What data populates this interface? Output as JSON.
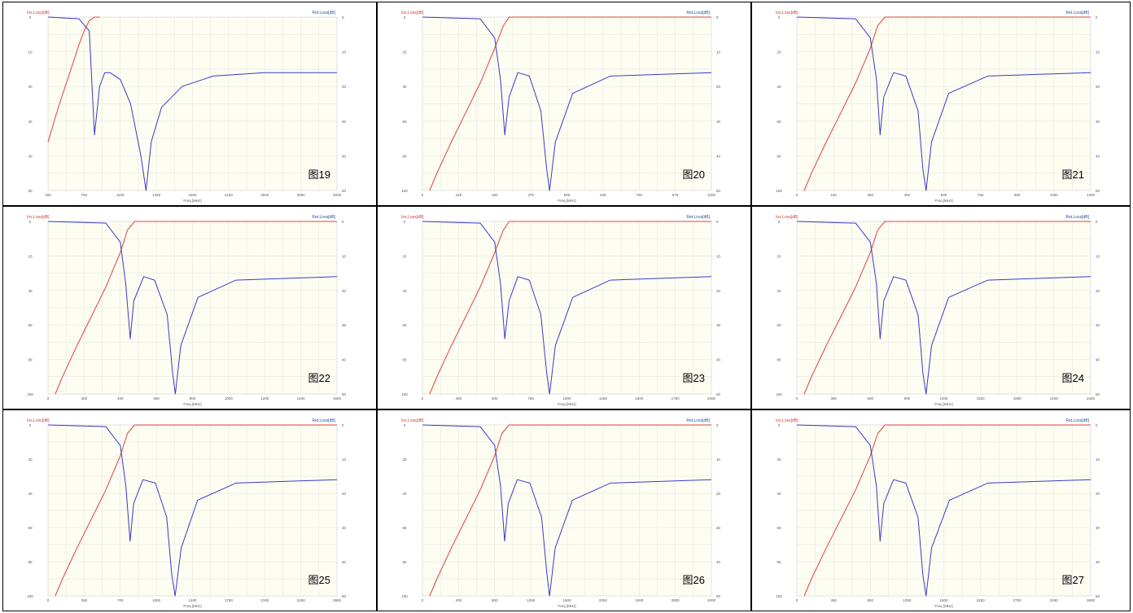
{
  "colors": {
    "plot_bg": "#fdfdf2",
    "grid": "#e2e2e2",
    "ins_loss": "#e0403a",
    "ret_loss": "#3a3ac8",
    "left_label": "#d04030",
    "right_label": "#2050a0",
    "axis_text": "#555555"
  },
  "charts": [
    {
      "left_axis_label": "Ins.Loss[dB]",
      "right_axis_label": "Ret.Loss[dB]",
      "xlabel": "Freq [MHz]",
      "left_ticks": [
        "0",
        "10",
        "20",
        "30",
        "40",
        "50"
      ],
      "right_ticks": [
        "0",
        "10",
        "20",
        "30",
        "40",
        "50"
      ],
      "x_ticks": [
        "400",
        "750",
        "1100",
        "1450",
        "1800",
        "2150",
        "2500",
        "2850",
        "3200"
      ],
      "figure_label": "图19"
    },
    {
      "left_axis_label": "Ins.Loss[dB]",
      "right_axis_label": "Ret.Loss[dB]",
      "xlabel": "Freq [MHz]",
      "left_ticks": [
        "0",
        "20",
        "40",
        "60",
        "80",
        "100"
      ],
      "right_ticks": [
        "0",
        "10",
        "20",
        "30",
        "40",
        "50"
      ],
      "x_ticks": [
        "0",
        "125",
        "250",
        "375",
        "500",
        "625",
        "750",
        "875",
        "1000"
      ],
      "figure_label": "图20"
    },
    {
      "left_axis_label": "Ins.Loss[dB]",
      "right_axis_label": "Ret.Loss[dB]",
      "xlabel": "Freq [MHz]",
      "left_ticks": [
        "0",
        "20",
        "40",
        "60",
        "80",
        "100"
      ],
      "right_ticks": [
        "0",
        "10",
        "20",
        "30",
        "40",
        "50"
      ],
      "x_ticks": [
        "0",
        "150",
        "300",
        "450",
        "600",
        "750",
        "900",
        "1050",
        "1200"
      ],
      "figure_label": "图21"
    },
    {
      "left_axis_label": "Ins.Loss[dB]",
      "right_axis_label": "Ret.Loss[dB]",
      "xlabel": "Freq [MHz]",
      "left_ticks": [
        "0",
        "20",
        "40",
        "60",
        "80",
        "100"
      ],
      "right_ticks": [
        "0",
        "10",
        "20",
        "30",
        "40",
        "50"
      ],
      "x_ticks": [
        "0",
        "200",
        "400",
        "600",
        "800",
        "1000",
        "1200",
        "1400",
        "1600"
      ],
      "figure_label": "图22"
    },
    {
      "left_axis_label": "Ins.Loss[dB]",
      "right_axis_label": "Ret.Loss[dB]",
      "xlabel": "Freq [MHz]",
      "left_ticks": [
        "0",
        "20",
        "40",
        "60",
        "80",
        "100"
      ],
      "right_ticks": [
        "0",
        "10",
        "20",
        "30",
        "40",
        "50"
      ],
      "x_ticks": [
        "0",
        "250",
        "500",
        "750",
        "1000",
        "1250",
        "1500",
        "1750",
        "2000"
      ],
      "figure_label": "图23"
    },
    {
      "left_axis_label": "Ins.Loss[dB]",
      "right_axis_label": "Ret.Loss[dB]",
      "xlabel": "Freq [MHz]",
      "left_ticks": [
        "0",
        "20",
        "40",
        "60",
        "80",
        "100"
      ],
      "right_ticks": [
        "0",
        "10",
        "20",
        "30",
        "40",
        "50"
      ],
      "x_ticks": [
        "0",
        "300",
        "600",
        "900",
        "1200",
        "1500",
        "1800",
        "2100",
        "2400"
      ],
      "figure_label": "图24"
    },
    {
      "left_axis_label": "Ins.Loss[dB]",
      "right_axis_label": "Ret.Loss[dB]",
      "xlabel": "Freq [MHz]",
      "left_ticks": [
        "0",
        "20",
        "40",
        "60",
        "80",
        "100"
      ],
      "right_ticks": [
        "0",
        "10",
        "20",
        "30",
        "40",
        "50"
      ],
      "x_ticks": [
        "0",
        "350",
        "700",
        "1050",
        "1400",
        "1750",
        "2100",
        "2450",
        "2800"
      ],
      "figure_label": "图25"
    },
    {
      "left_axis_label": "Ins.Loss[dB]",
      "right_axis_label": "Ret.Loss[dB]",
      "xlabel": "Freq [MHz]",
      "left_ticks": [
        "0",
        "20",
        "40",
        "60",
        "80",
        "100"
      ],
      "right_ticks": [
        "0",
        "10",
        "20",
        "30",
        "40",
        "50"
      ],
      "x_ticks": [
        "0",
        "400",
        "800",
        "1200",
        "1600",
        "2000",
        "2400",
        "2800",
        "3200"
      ],
      "figure_label": "图26"
    },
    {
      "left_axis_label": "Ins.Loss[dB]",
      "right_axis_label": "Ret.Loss[dB]",
      "xlabel": "Freq [MHz]",
      "left_ticks": [
        "0",
        "20",
        "40",
        "60",
        "80",
        "100"
      ],
      "right_ticks": [
        "0",
        "10",
        "20",
        "30",
        "40",
        "50"
      ],
      "x_ticks": [
        "0",
        "450",
        "900",
        "1350",
        "1800",
        "2250",
        "2700",
        "3150",
        "3600"
      ],
      "figure_label": "图27"
    }
  ],
  "chart_data": [
    {
      "type": "line",
      "x_range": [
        400,
        3200
      ],
      "y_left_range": [
        0,
        50
      ],
      "y_right_range": [
        0,
        50
      ],
      "series": [
        {
          "x": [
            400,
            500,
            600,
            700,
            750,
            800,
            850,
            900
          ],
          "values": [
            36,
            26,
            17,
            8,
            4,
            1,
            0,
            0
          ]
        },
        {
          "x": [
            400,
            700,
            800,
            850,
            900,
            950,
            1000,
            1100,
            1200,
            1300,
            1350,
            1400,
            1500,
            1700,
            2000,
            2500,
            3200
          ],
          "values": [
            0,
            0.5,
            4,
            34,
            20,
            16,
            16,
            18,
            25,
            40,
            50,
            36,
            26,
            20,
            17,
            16,
            16
          ]
        }
      ]
    },
    {
      "type": "line",
      "x_range": [
        0,
        1000
      ],
      "y_left_range": [
        0,
        100
      ],
      "y_right_range": [
        0,
        50
      ],
      "series": [
        {
          "x": [
            25,
            50,
            100,
            150,
            200,
            250,
            280,
            300,
            1000
          ],
          "values": [
            100,
            90,
            72,
            55,
            38,
            18,
            5,
            0,
            0
          ]
        },
        {
          "x": [
            0,
            200,
            250,
            270,
            285,
            300,
            330,
            370,
            410,
            430,
            440,
            460,
            520,
            650,
            1000
          ],
          "values": [
            0,
            0.5,
            6,
            18,
            34,
            23,
            16,
            17,
            27,
            44,
            50,
            36,
            22,
            17,
            16
          ]
        }
      ]
    },
    {
      "type": "line",
      "x_range": [
        0,
        1200
      ],
      "y_left_range": [
        0,
        100
      ],
      "y_right_range": [
        0,
        50
      ],
      "series": [
        {
          "x": [
            30,
            60,
            120,
            180,
            240,
            300,
            330,
            360,
            1200
          ],
          "values": [
            100,
            90,
            72,
            55,
            38,
            18,
            5,
            0,
            0
          ]
        },
        {
          "x": [
            0,
            240,
            300,
            325,
            340,
            355,
            395,
            445,
            495,
            515,
            528,
            550,
            620,
            780,
            1200
          ],
          "values": [
            0,
            0.5,
            6,
            18,
            34,
            23,
            16,
            17,
            27,
            44,
            50,
            36,
            22,
            17,
            16
          ]
        }
      ]
    },
    {
      "type": "line",
      "x_range": [
        0,
        1600
      ],
      "y_left_range": [
        0,
        100
      ],
      "y_right_range": [
        0,
        50
      ],
      "series": [
        {
          "x": [
            40,
            80,
            160,
            240,
            320,
            400,
            440,
            480,
            1600
          ],
          "values": [
            100,
            90,
            72,
            55,
            38,
            18,
            5,
            0,
            0
          ]
        },
        {
          "x": [
            0,
            320,
            400,
            430,
            455,
            475,
            530,
            590,
            660,
            690,
            705,
            735,
            830,
            1040,
            1600
          ],
          "values": [
            0,
            0.5,
            6,
            18,
            34,
            23,
            16,
            17,
            27,
            44,
            50,
            36,
            22,
            17,
            16
          ]
        }
      ]
    },
    {
      "type": "line",
      "x_range": [
        0,
        2000
      ],
      "y_left_range": [
        0,
        100
      ],
      "y_right_range": [
        0,
        50
      ],
      "series": [
        {
          "x": [
            50,
            100,
            200,
            300,
            400,
            500,
            560,
            600,
            2000
          ],
          "values": [
            100,
            90,
            72,
            55,
            38,
            18,
            5,
            0,
            0
          ]
        },
        {
          "x": [
            0,
            400,
            500,
            540,
            570,
            600,
            660,
            740,
            820,
            860,
            880,
            920,
            1040,
            1300,
            2000
          ],
          "values": [
            0,
            0.5,
            6,
            18,
            34,
            23,
            16,
            17,
            27,
            44,
            50,
            36,
            22,
            17,
            16
          ]
        }
      ]
    },
    {
      "type": "line",
      "x_range": [
        0,
        2400
      ],
      "y_left_range": [
        0,
        100
      ],
      "y_right_range": [
        0,
        50
      ],
      "series": [
        {
          "x": [
            60,
            120,
            240,
            360,
            480,
            600,
            660,
            720,
            2400
          ],
          "values": [
            100,
            90,
            72,
            55,
            38,
            18,
            5,
            0,
            0
          ]
        },
        {
          "x": [
            0,
            480,
            600,
            650,
            680,
            710,
            790,
            890,
            990,
            1030,
            1056,
            1100,
            1240,
            1560,
            2400
          ],
          "values": [
            0,
            0.5,
            6,
            18,
            34,
            23,
            16,
            17,
            27,
            44,
            50,
            36,
            22,
            17,
            16
          ]
        }
      ]
    },
    {
      "type": "line",
      "x_range": [
        0,
        2800
      ],
      "y_left_range": [
        0,
        100
      ],
      "y_right_range": [
        0,
        50
      ],
      "series": [
        {
          "x": [
            70,
            140,
            280,
            420,
            560,
            700,
            770,
            840,
            2800
          ],
          "values": [
            100,
            90,
            72,
            55,
            38,
            18,
            5,
            0,
            0
          ]
        },
        {
          "x": [
            0,
            560,
            700,
            755,
            795,
            830,
            920,
            1040,
            1150,
            1200,
            1232,
            1290,
            1450,
            1820,
            2800
          ],
          "values": [
            0,
            0.5,
            6,
            18,
            34,
            23,
            16,
            17,
            27,
            44,
            50,
            36,
            22,
            17,
            16
          ]
        }
      ]
    },
    {
      "type": "line",
      "x_range": [
        0,
        3200
      ],
      "y_left_range": [
        0,
        100
      ],
      "y_right_range": [
        0,
        50
      ],
      "series": [
        {
          "x": [
            80,
            160,
            320,
            480,
            640,
            800,
            880,
            960,
            3200
          ],
          "values": [
            100,
            90,
            72,
            55,
            38,
            18,
            5,
            0,
            0
          ]
        },
        {
          "x": [
            0,
            640,
            800,
            865,
            910,
            950,
            1050,
            1190,
            1320,
            1380,
            1408,
            1470,
            1660,
            2080,
            3200
          ],
          "values": [
            0,
            0.5,
            6,
            18,
            34,
            23,
            16,
            17,
            27,
            44,
            50,
            36,
            22,
            17,
            16
          ]
        }
      ]
    },
    {
      "type": "line",
      "x_range": [
        0,
        3600
      ],
      "y_left_range": [
        0,
        100
      ],
      "y_right_range": [
        0,
        50
      ],
      "series": [
        {
          "x": [
            90,
            180,
            360,
            540,
            720,
            900,
            990,
            1080,
            3600
          ],
          "values": [
            100,
            90,
            72,
            55,
            38,
            18,
            5,
            0,
            0
          ]
        },
        {
          "x": [
            0,
            720,
            900,
            975,
            1020,
            1065,
            1185,
            1335,
            1485,
            1545,
            1584,
            1650,
            1870,
            2340,
            3600
          ],
          "values": [
            0,
            0.5,
            6,
            18,
            34,
            23,
            16,
            17,
            27,
            44,
            50,
            36,
            22,
            17,
            16
          ]
        }
      ]
    }
  ]
}
